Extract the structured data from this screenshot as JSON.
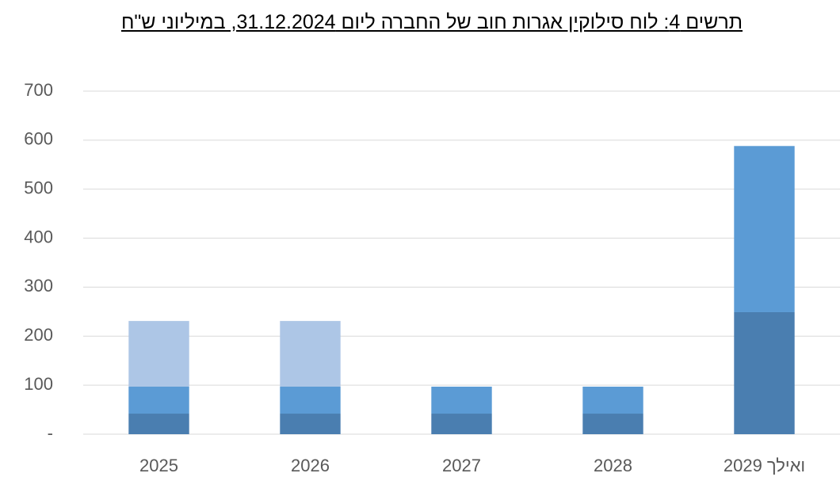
{
  "chart_data": {
    "type": "stacked-bar",
    "title": "תרשים 4: לוח סילוקין אגרות חוב של החברה ליום 31.12.2024, במיליוני ש\"ח",
    "categories": [
      "2025",
      "2026",
      "2027",
      "2028",
      "2029 ואילך"
    ],
    "series": [
      {
        "color": "#4a7eb0",
        "values": [
          42,
          42,
          42,
          42,
          249
        ]
      },
      {
        "color": "#5b9bd5",
        "values": [
          55,
          55,
          55,
          55,
          339
        ]
      },
      {
        "color": "#adc6e6",
        "values": [
          134,
          134,
          0,
          0,
          0
        ]
      }
    ],
    "ylim": [
      0,
      700
    ],
    "yticks": [
      {
        "value": 0,
        "label": "-"
      },
      100,
      200,
      300,
      400,
      500,
      600,
      700
    ],
    "grid": true
  }
}
